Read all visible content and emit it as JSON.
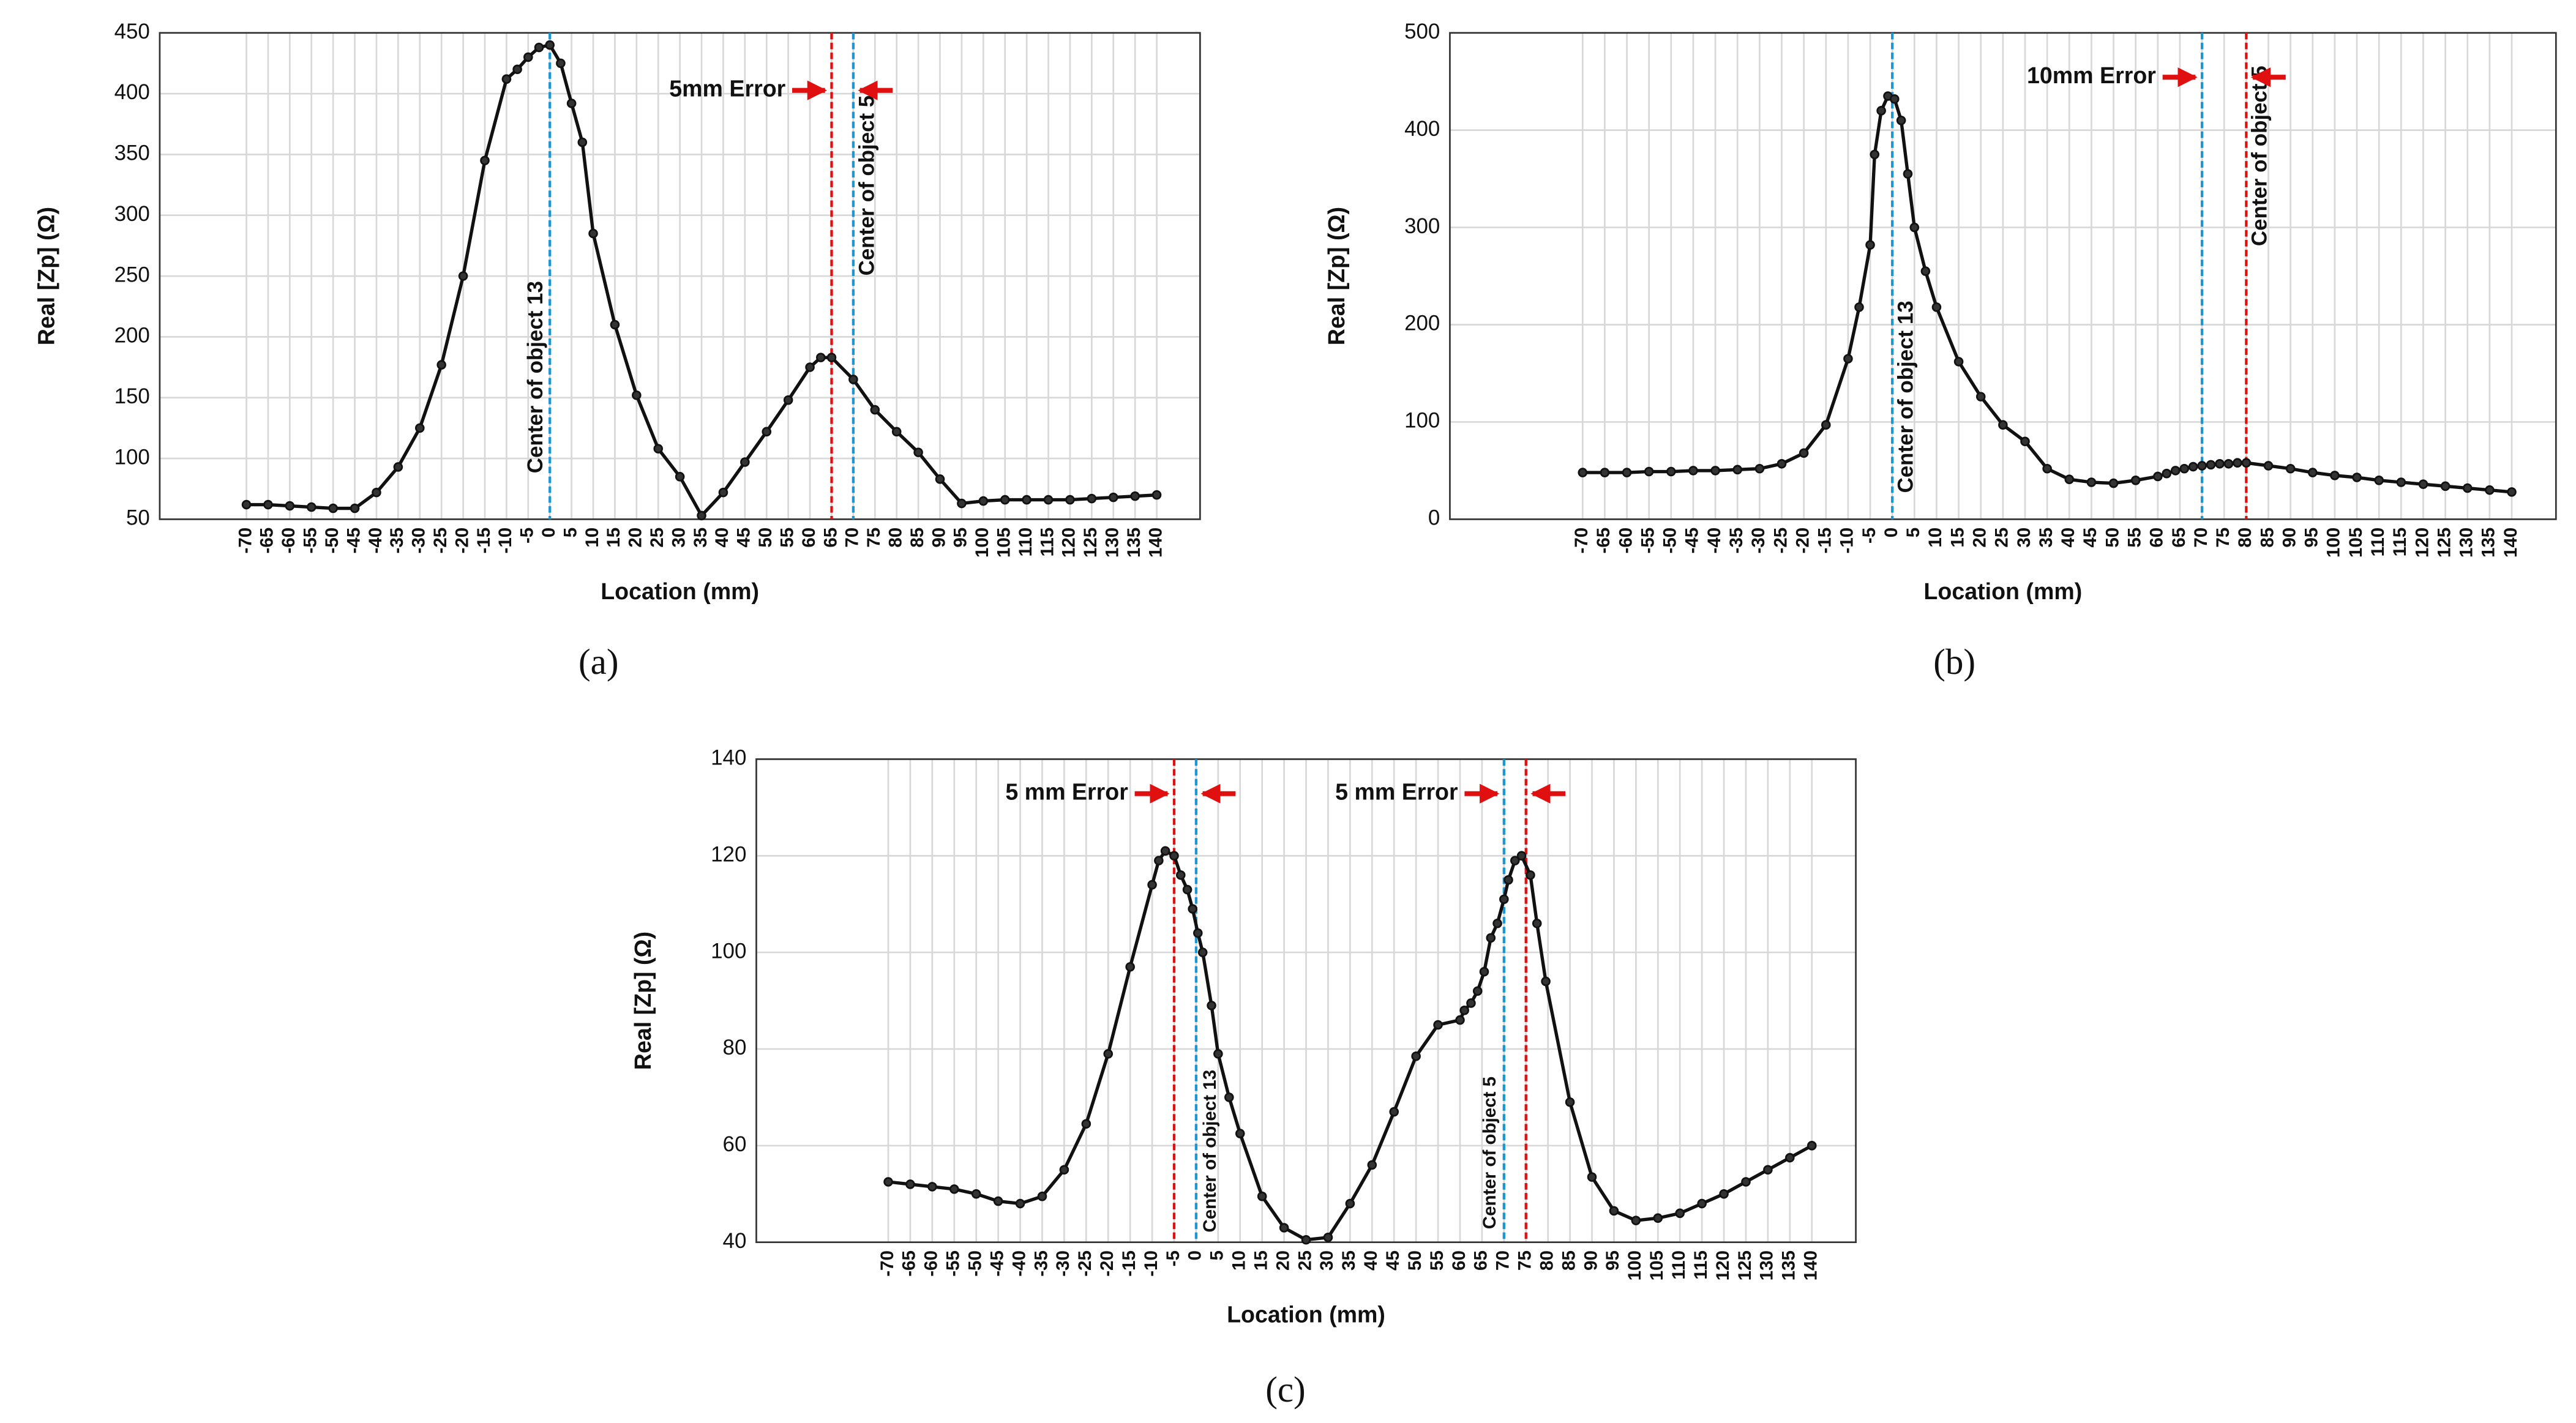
{
  "chart_data": [
    {
      "type": "line",
      "panel_label": "(a)",
      "xlabel": "Location (mm)",
      "ylabel": "Real [Zp] (Ω)",
      "xlim": [
        -90,
        150
      ],
      "ylim": [
        50,
        450
      ],
      "xticks": [
        -70,
        -65,
        -60,
        -55,
        -50,
        -45,
        -40,
        -35,
        -30,
        -25,
        -20,
        -15,
        -10,
        -5,
        0,
        5,
        10,
        15,
        20,
        25,
        30,
        35,
        40,
        45,
        50,
        55,
        60,
        65,
        70,
        75,
        80,
        85,
        90,
        95,
        100,
        105,
        110,
        115,
        120,
        125,
        130,
        135,
        140
      ],
      "yticks": [
        50,
        100,
        150,
        200,
        250,
        300,
        350,
        400,
        450
      ],
      "grid": true,
      "series": [
        {
          "color": "#111111",
          "x": [
            -70,
            -65,
            -60,
            -55,
            -50,
            -45,
            -40,
            -35,
            -30,
            -25,
            -20,
            -15,
            -10,
            -7.5,
            -5,
            -2.5,
            0,
            2.5,
            5,
            7.5,
            10,
            15,
            20,
            25,
            30,
            35,
            40,
            45,
            50,
            55,
            60,
            62.5,
            65,
            70,
            75,
            80,
            85,
            90,
            95,
            100,
            105,
            110,
            115,
            120,
            125,
            130,
            135,
            140
          ],
          "values": [
            62,
            62,
            61,
            60,
            59,
            59,
            72,
            93,
            125,
            177,
            250,
            345,
            412,
            420,
            430,
            438,
            440,
            425,
            392,
            360,
            285,
            210,
            152,
            108,
            85,
            53,
            72,
            97,
            122,
            148,
            175,
            183,
            183,
            165,
            140,
            122,
            105,
            83,
            63,
            65,
            66,
            66,
            66,
            66,
            67,
            68,
            69,
            70
          ]
        }
      ],
      "vlines": [
        {
          "x": 0,
          "color": "#1e96d2",
          "label": "Center of object 13"
        },
        {
          "x": 65,
          "color": "#e01010"
        },
        {
          "x": 70,
          "color": "#1e96d2",
          "label": "Center of object 5"
        }
      ],
      "annotations": [
        {
          "text": "5mm Error",
          "x1": 65,
          "x2": 70
        }
      ]
    },
    {
      "type": "line",
      "panel_label": "(b)",
      "xlabel": "Location (mm)",
      "ylabel": "Real [Zp] (Ω)",
      "xlim": [
        -100,
        150
      ],
      "ylim": [
        0,
        500
      ],
      "xticks": [
        -70,
        -65,
        -60,
        -55,
        -50,
        -45,
        -40,
        -35,
        -30,
        -25,
        -20,
        -15,
        -10,
        -5,
        0,
        5,
        10,
        15,
        20,
        25,
        30,
        35,
        40,
        45,
        50,
        55,
        60,
        65,
        70,
        75,
        80,
        85,
        90,
        95,
        100,
        105,
        110,
        115,
        120,
        125,
        130,
        135,
        140
      ],
      "yticks": [
        0,
        100,
        200,
        300,
        400,
        500
      ],
      "grid": true,
      "series": [
        {
          "color": "#111111",
          "x": [
            -70,
            -65,
            -60,
            -55,
            -50,
            -45,
            -40,
            -35,
            -30,
            -25,
            -20,
            -15,
            -10,
            -7.5,
            -5,
            -4,
            -2.5,
            -1,
            0.5,
            2,
            3.5,
            5,
            7.5,
            10,
            15,
            20,
            25,
            30,
            35,
            40,
            45,
            50,
            55,
            60,
            62,
            64,
            66,
            68,
            70,
            72,
            74,
            76,
            78,
            80,
            85,
            90,
            95,
            100,
            105,
            110,
            115,
            120,
            125,
            130,
            135,
            140
          ],
          "values": [
            48,
            48,
            48,
            49,
            49,
            50,
            50,
            51,
            52,
            57,
            68,
            97,
            165,
            218,
            282,
            375,
            420,
            435,
            432,
            410,
            355,
            300,
            255,
            218,
            162,
            126,
            97,
            80,
            52,
            41,
            38,
            37,
            40,
            44,
            47,
            50,
            52,
            54,
            55,
            56,
            57,
            57,
            58,
            58,
            55,
            52,
            48,
            45,
            43,
            40,
            38,
            36,
            34,
            32,
            30,
            28
          ]
        }
      ],
      "vlines": [
        {
          "x": 0,
          "color": "#1e96d2",
          "label": "Center of object 13"
        },
        {
          "x": 70,
          "color": "#1e96d2"
        },
        {
          "x": 80,
          "color": "#e01010",
          "label": "Center of object 5"
        }
      ],
      "annotations": [
        {
          "text": "10mm Error",
          "x1": 70,
          "x2": 80
        }
      ]
    },
    {
      "type": "line",
      "panel_label": "(c)",
      "xlabel": "Location (mm)",
      "ylabel": "Real [Zp] (Ω)",
      "xlim": [
        -100,
        150
      ],
      "ylim": [
        40,
        140
      ],
      "xticks": [
        -70,
        -65,
        -60,
        -55,
        -50,
        -45,
        -40,
        -35,
        -30,
        -25,
        -20,
        -15,
        -10,
        -5,
        0,
        5,
        10,
        15,
        20,
        25,
        30,
        35,
        40,
        45,
        50,
        55,
        60,
        65,
        70,
        75,
        80,
        85,
        90,
        95,
        100,
        105,
        110,
        115,
        120,
        125,
        130,
        135,
        140
      ],
      "yticks": [
        40,
        60,
        80,
        100,
        120,
        140
      ],
      "grid": true,
      "series": [
        {
          "color": "#111111",
          "x": [
            -70,
            -65,
            -60,
            -55,
            -50,
            -45,
            -40,
            -35,
            -30,
            -25,
            -20,
            -15,
            -10,
            -8.5,
            -7,
            -5,
            -3.5,
            -2,
            -0.8,
            0.4,
            1.5,
            3.5,
            5,
            7.5,
            10,
            15,
            20,
            25,
            30,
            35,
            40,
            45,
            50,
            55,
            60,
            61,
            62.5,
            64,
            65.5,
            67,
            68.5,
            70,
            71,
            72.5,
            74,
            76,
            77.5,
            79.5,
            85,
            90,
            95,
            100,
            105,
            110,
            115,
            120,
            125,
            130,
            135,
            140
          ],
          "values": [
            52.5,
            52,
            51.5,
            51,
            50,
            48.5,
            48,
            49.5,
            55,
            64.5,
            79,
            97,
            114,
            119,
            121,
            120,
            116,
            113,
            109,
            104,
            100,
            89,
            79,
            70,
            62.5,
            49.5,
            43,
            40.5,
            41,
            48,
            56,
            67,
            78.5,
            85,
            86,
            88,
            89.5,
            92,
            96,
            103,
            106,
            111,
            115,
            119,
            120,
            116,
            106,
            94,
            69,
            53.5,
            46.5,
            44.5,
            45,
            46,
            48,
            50,
            52.5,
            55,
            57.5,
            60
          ]
        }
      ],
      "vlines": [
        {
          "x": -5,
          "color": "#e01010"
        },
        {
          "x": 0,
          "color": "#1e96d2",
          "label": "Center of object 13"
        },
        {
          "x": 70,
          "color": "#1e96d2",
          "label": "Center of object 5"
        },
        {
          "x": 75,
          "color": "#e01010"
        }
      ],
      "annotations": [
        {
          "text": "5 mm Error",
          "x1": -5,
          "x2": 0
        },
        {
          "text": "5 mm Error",
          "x1": 70,
          "x2": 75
        }
      ]
    }
  ]
}
